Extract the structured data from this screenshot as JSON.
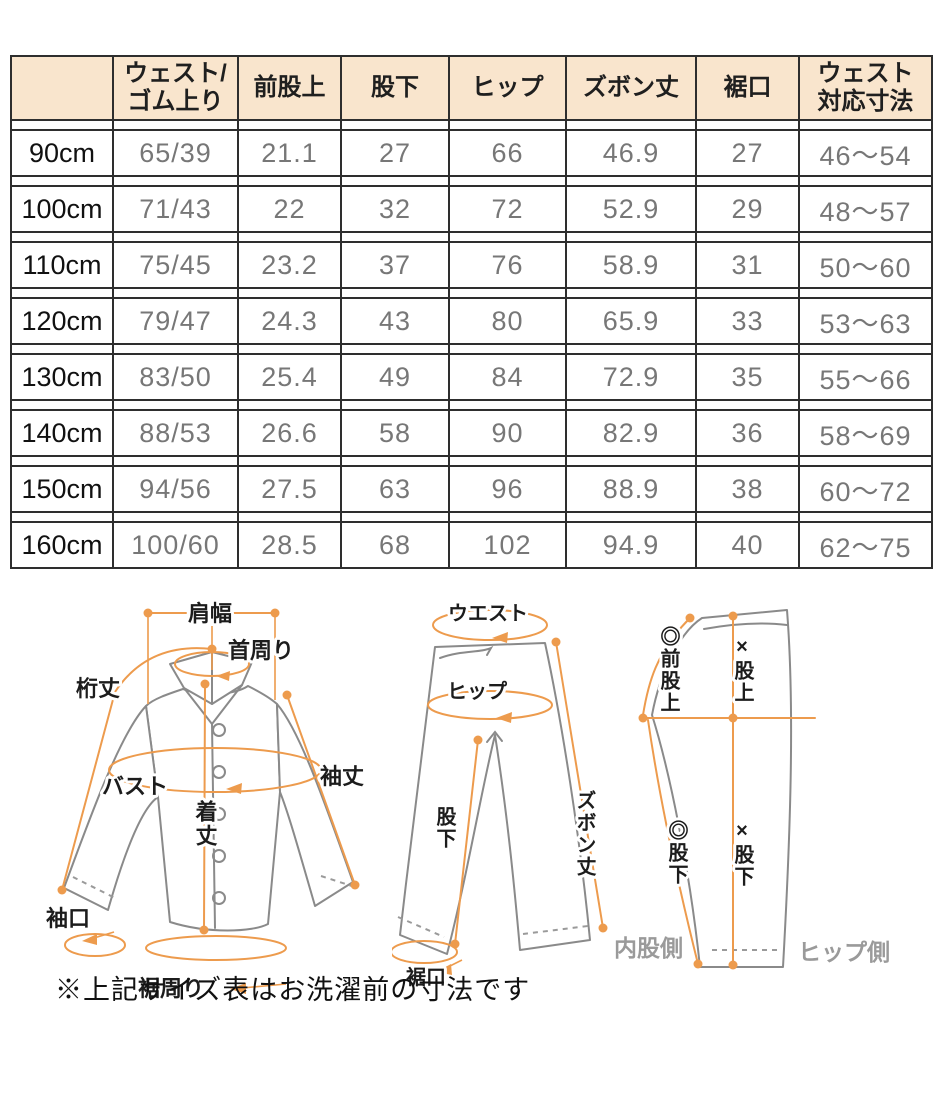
{
  "table": {
    "headers": [
      "",
      "ウェスト/\nゴム上り",
      "前股上",
      "股下",
      "ヒップ",
      "ズボン丈",
      "裾口",
      "ウェスト\n対応寸法"
    ],
    "rows": [
      [
        "90cm",
        "65/39",
        "21.1",
        "27",
        "66",
        "46.9",
        "27",
        "46〜54"
      ],
      [
        "100cm",
        "71/43",
        "22",
        "32",
        "72",
        "52.9",
        "29",
        "48〜57"
      ],
      [
        "110cm",
        "75/45",
        "23.2",
        "37",
        "76",
        "58.9",
        "31",
        "50〜60"
      ],
      [
        "120cm",
        "79/47",
        "24.3",
        "43",
        "80",
        "65.9",
        "33",
        "53〜63"
      ],
      [
        "130cm",
        "83/50",
        "25.4",
        "49",
        "84",
        "72.9",
        "35",
        "55〜66"
      ],
      [
        "140cm",
        "88/53",
        "26.6",
        "58",
        "90",
        "82.9",
        "36",
        "58〜69"
      ],
      [
        "150cm",
        "94/56",
        "27.5",
        "63",
        "96",
        "88.9",
        "38",
        "60〜72"
      ],
      [
        "160cm",
        "100/60",
        "28.5",
        "68",
        "102",
        "94.9",
        "40",
        "62〜75"
      ]
    ]
  },
  "diagrams": {
    "shirt": {
      "shoulder_width": "肩幅",
      "neck": "首周り",
      "yuki": "桁丈",
      "bust": "バスト",
      "sleeve": "袖丈",
      "body_length": "着丈",
      "cuff": "袖口",
      "hem": "裾周り"
    },
    "pants_front": {
      "waist": "ウエスト",
      "hip": "ヒップ",
      "length": "ズボン丈",
      "inseam": "股下",
      "hem": "裾口"
    },
    "pants_side": {
      "front_rise": "◎前股上",
      "rise": "×股上",
      "inseam_a": "◎股下",
      "inseam_b": "×股下",
      "inner_side": "内股側",
      "hip_side": "ヒップ側"
    }
  },
  "note": "※上記サイズ表はお洗濯前の寸法です",
  "colors": {
    "accent": "#ED9B4D",
    "header_bg": "#F9E5CD",
    "outline_gray": "#8a8a8a",
    "muted_gray": "#9a9a9a",
    "border": "#2e2e2e"
  }
}
